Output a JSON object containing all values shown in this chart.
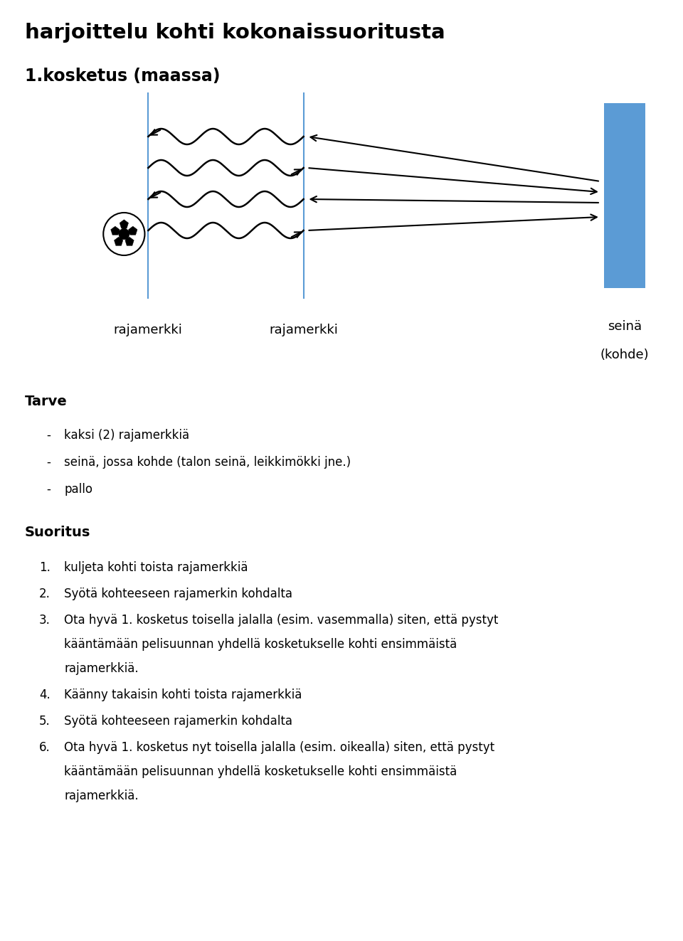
{
  "title": "harjoittelu kohti kokonaissuoritusta",
  "subtitle": "1.kosketus (maassa)",
  "bg_color": "#ffffff",
  "label_rajamerkki1": "rajamerkki",
  "label_rajamerkki2": "rajamerkki",
  "label_seina": "seinä\n(kohde)",
  "label_tarve": "Tarve",
  "tarve_items": [
    "kaksi (2) rajamerkkiä",
    "seinä, jossa kohde (talon seinä, leikkimökki jne.)",
    "pallo"
  ],
  "label_suoritus": "Suoritus",
  "suoritus_items": [
    "kuljeta kohti toista rajamerkkiä",
    "Syötä kohteeseen rajamerkin kohdalta",
    "Ota hyvä 1. kosketus toisella jalalla (esim. vasemmalla) siten, että pystyt\nkääntämään pelisuunnan yhdellä kosketukselle kohti ensimmäistä\nrajamerkkiä.",
    "Käänny takaisin kohti toista rajamerkkiä",
    "Syötä kohteeseen rajamerkin kohdalta",
    "Ota hyvä 1. kosketus nyt toisella jalalla (esim. oikealla) siten, että pystyt\nkääntämään pelisuunnan yhdellä kosketukselle kohti ensimmäistä\nrajamerkkiä."
  ],
  "line_color": "#5b9bd5",
  "arrow_color": "#000000",
  "rect_color": "#5b9bd5",
  "wave_color": "#000000",
  "fig_width": 9.6,
  "fig_height": 13.23,
  "dpi": 100
}
